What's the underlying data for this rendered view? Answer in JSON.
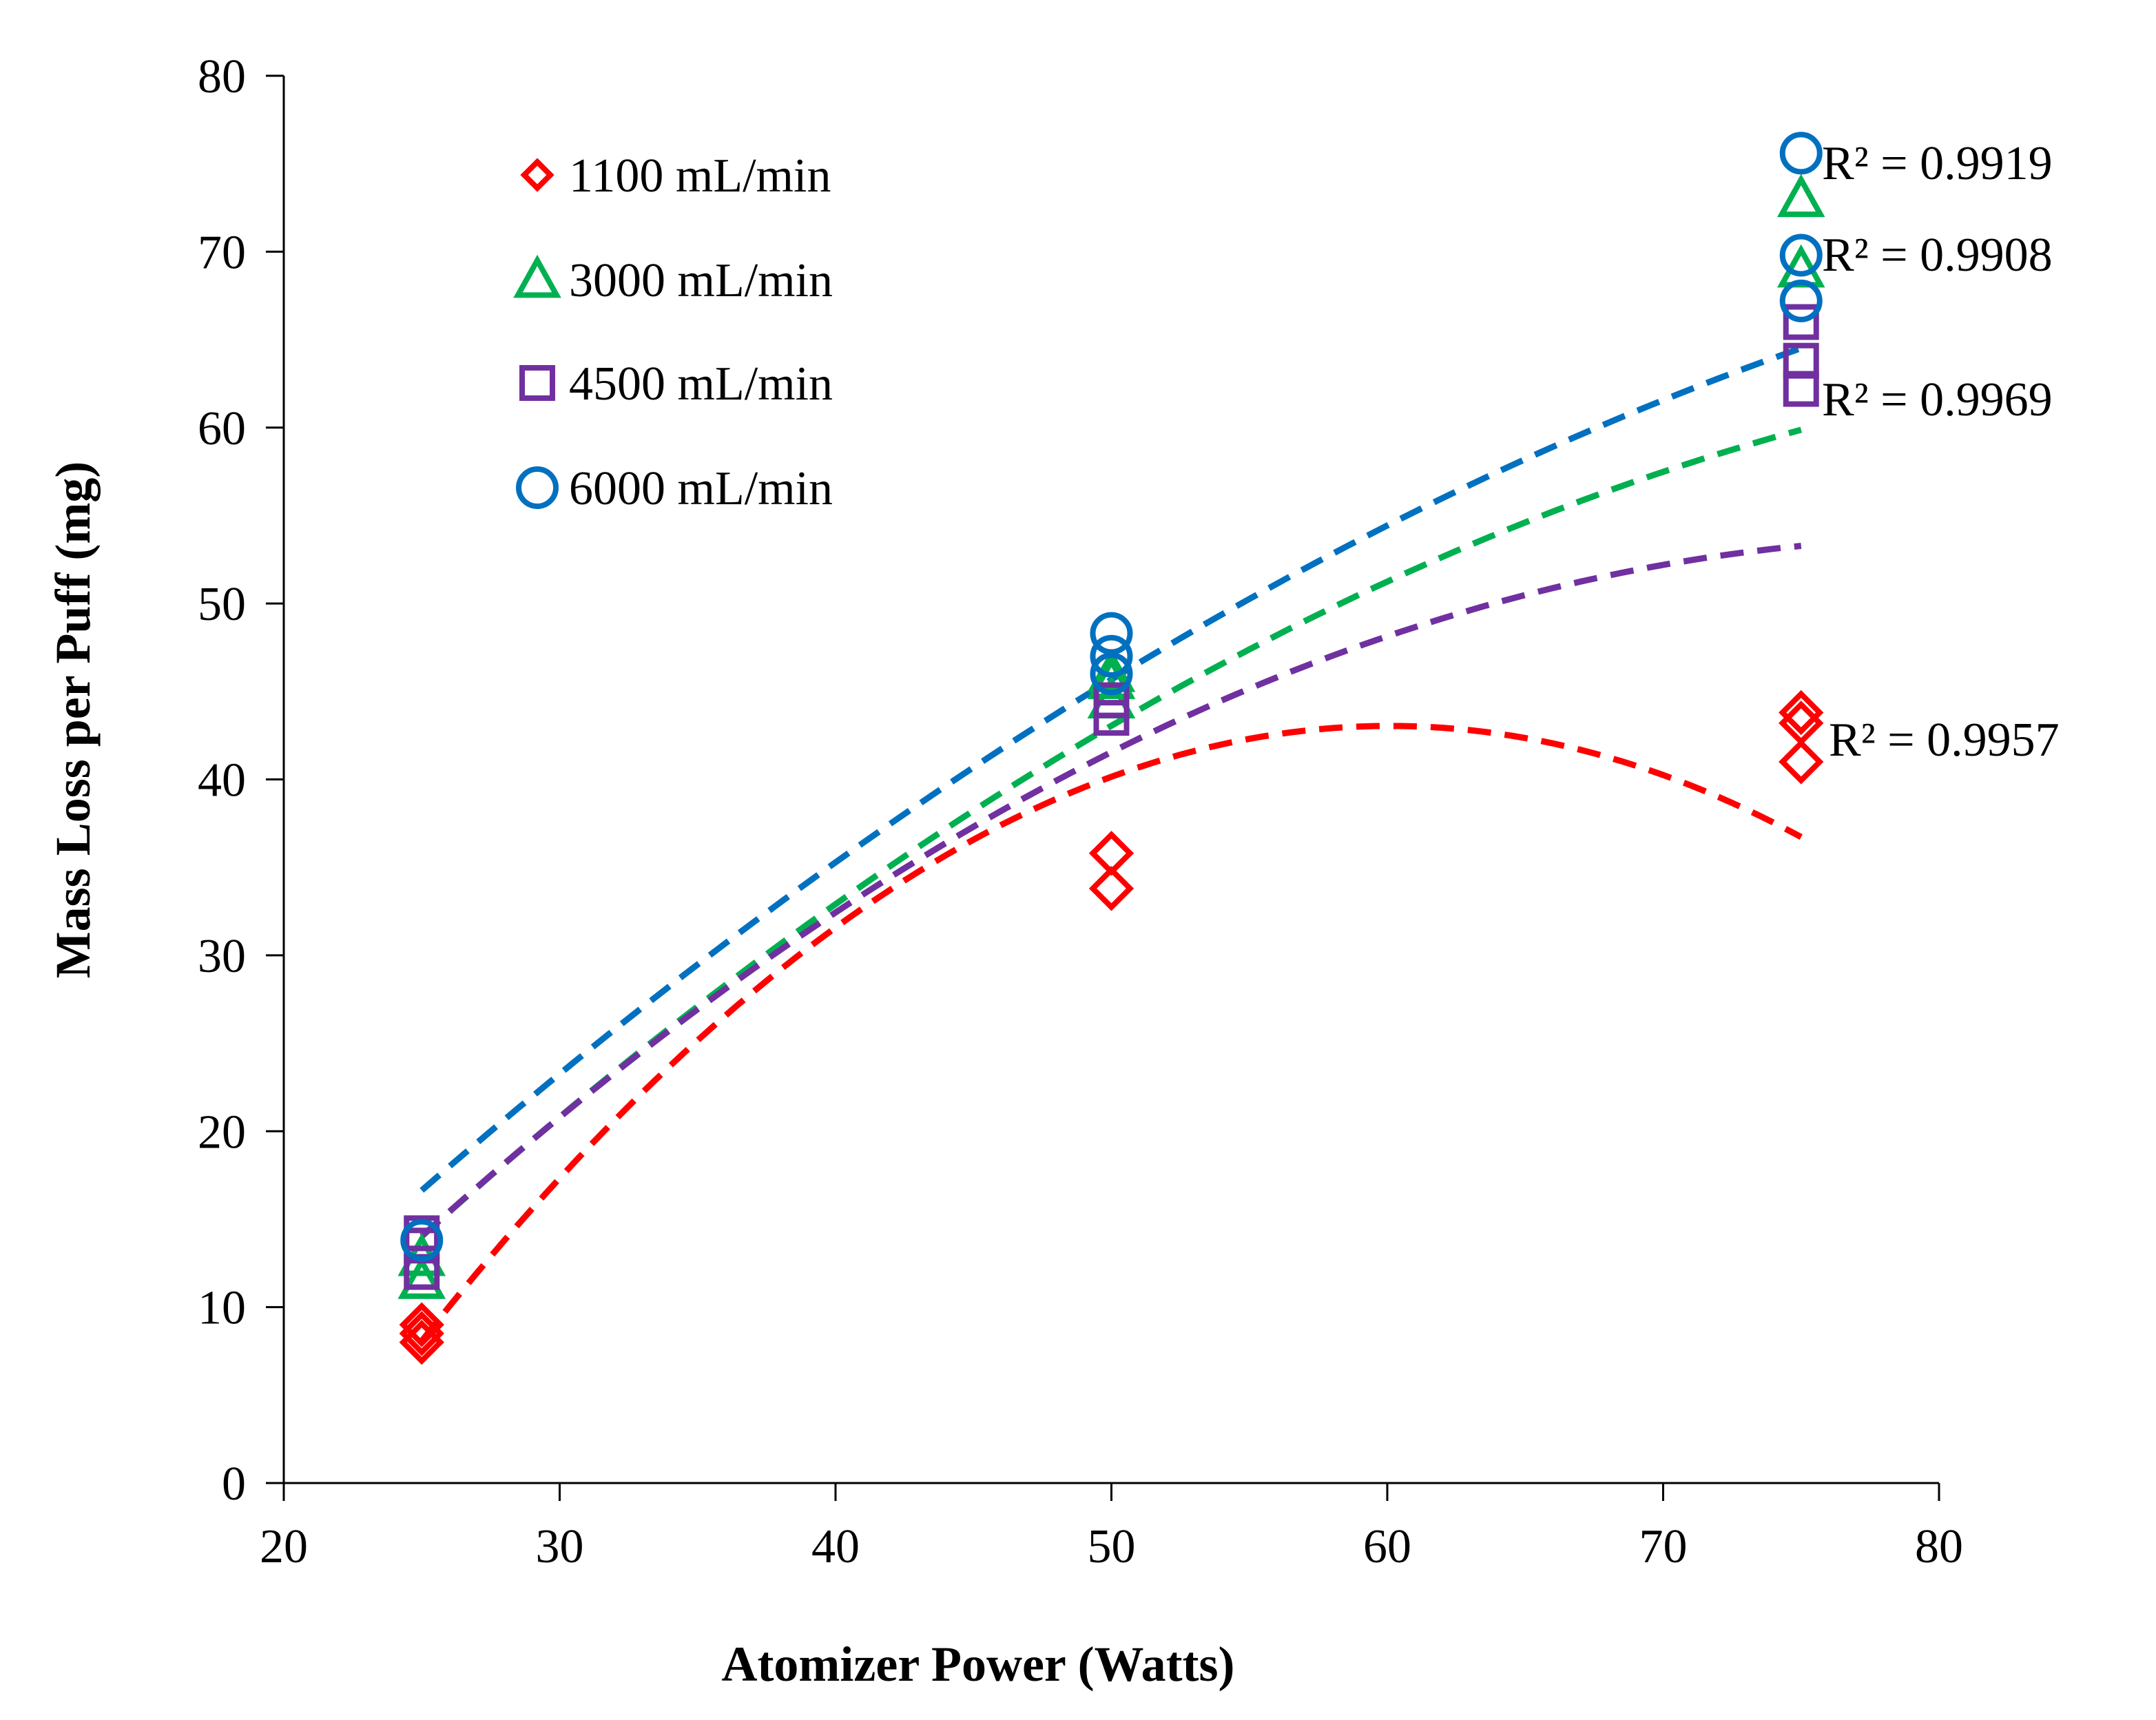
{
  "chart_data": {
    "type": "scatter",
    "title": "",
    "xlabel": "Atomizer Power (Watts)",
    "ylabel": "Mass Loss per Puff (mg)",
    "xlim": [
      20,
      80
    ],
    "ylim": [
      0,
      80
    ],
    "xticks": [
      "20",
      "30",
      "40",
      "50",
      "60",
      "70",
      "80"
    ],
    "yticks": [
      "0",
      "10",
      "20",
      "30",
      "40",
      "50",
      "60",
      "70",
      "80"
    ],
    "legend_position": "top-left",
    "series": [
      {
        "name": "1100 mL/min",
        "marker": "diamond",
        "color": "#ff0000",
        "points": [
          [
            25,
            8.0
          ],
          [
            25,
            8.5
          ],
          [
            25,
            9.0
          ],
          [
            50,
            33.8
          ],
          [
            50,
            35.8
          ],
          [
            75,
            41.0
          ],
          [
            75,
            43.2
          ],
          [
            75,
            43.8
          ]
        ],
        "trend": [
          -0.0284,
          3.413,
          -59.5
        ],
        "r2_label": "R² = 0.9957"
      },
      {
        "name": "3000 mL/min",
        "marker": "triangle",
        "color": "#00b050",
        "points": [
          [
            25,
            11.5
          ],
          [
            25,
            12.8
          ],
          [
            50,
            44.5
          ],
          [
            50,
            45.6
          ],
          [
            50,
            46.0
          ],
          [
            75,
            69.0
          ],
          [
            75,
            73.0
          ]
        ],
        "trend": [
          -0.00976,
          1.893,
          -27.2
        ],
        "r2_label": "R² = 0.9908"
      },
      {
        "name": "4500 mL/min",
        "marker": "square",
        "color": "#7030a0",
        "points": [
          [
            25,
            12.0
          ],
          [
            25,
            13.5
          ],
          [
            25,
            14.2
          ],
          [
            50,
            43.5
          ],
          [
            50,
            44.5
          ],
          [
            75,
            62.2
          ],
          [
            75,
            63.8
          ],
          [
            75,
            66.0
          ]
        ],
        "trend": [
          -0.01264,
          2.049,
          -29.3
        ],
        "r2_label": "R² = 0.9969"
      },
      {
        "name": "6000 mL/min",
        "marker": "circle",
        "color": "#0070c0",
        "points": [
          [
            25,
            13.8
          ],
          [
            50,
            46.0
          ],
          [
            50,
            47.0
          ],
          [
            50,
            48.3
          ],
          [
            75,
            67.2
          ],
          [
            75,
            69.8
          ],
          [
            75,
            75.6
          ]
        ],
        "trend": [
          -0.00816,
          1.7735,
          -22.6
        ],
        "r2_label": "R² = 0.9919"
      }
    ]
  }
}
